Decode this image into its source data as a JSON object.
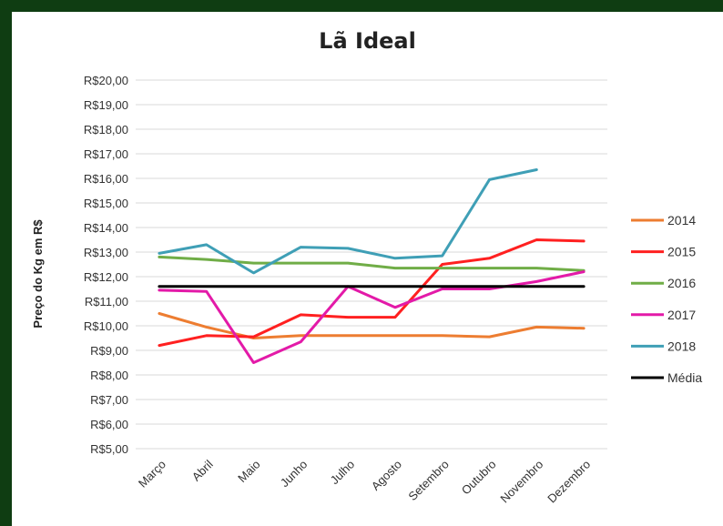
{
  "chart_data": {
    "type": "line",
    "title": "Lã Ideal",
    "xlabel": "",
    "ylabel": "Preço do Kg em R$",
    "categories": [
      "Março",
      "Abril",
      "Maio",
      "Junho",
      "Julho",
      "Agosto",
      "Setembro",
      "Outubro",
      "Novembro",
      "Dezembro"
    ],
    "ylim": [
      5,
      20
    ],
    "y_ticks": [
      "R$5,00",
      "R$6,00",
      "R$7,00",
      "R$8,00",
      "R$9,00",
      "R$10,00",
      "R$11,00",
      "R$12,00",
      "R$13,00",
      "R$14,00",
      "R$15,00",
      "R$16,00",
      "R$17,00",
      "R$18,00",
      "R$19,00",
      "R$20,00"
    ],
    "grid": true,
    "legend_position": "right",
    "series": [
      {
        "name": "2014",
        "color": "#ed7d31",
        "values": [
          10.5,
          9.95,
          9.5,
          9.6,
          9.6,
          9.6,
          9.6,
          9.55,
          9.95,
          9.9
        ]
      },
      {
        "name": "2015",
        "color": "#ff2020",
        "values": [
          9.2,
          9.6,
          9.55,
          10.45,
          10.35,
          10.35,
          12.5,
          12.75,
          13.5,
          13.45
        ]
      },
      {
        "name": "2016",
        "color": "#70ad47",
        "values": [
          12.8,
          12.7,
          12.55,
          12.55,
          12.55,
          12.35,
          12.35,
          12.35,
          12.35,
          12.25
        ]
      },
      {
        "name": "2017",
        "color": "#e31aa8",
        "values": [
          11.45,
          11.4,
          8.5,
          9.35,
          11.6,
          10.75,
          11.5,
          11.5,
          11.8,
          12.2
        ]
      },
      {
        "name": "2018",
        "color": "#3f9fb6",
        "values": [
          12.95,
          13.3,
          12.15,
          13.2,
          13.15,
          12.75,
          12.85,
          15.95,
          16.35,
          null
        ]
      },
      {
        "name": "Média",
        "color": "#000000",
        "values": [
          11.6,
          11.6,
          11.6,
          11.6,
          11.6,
          11.6,
          11.6,
          11.6,
          11.6,
          11.6
        ]
      }
    ]
  }
}
